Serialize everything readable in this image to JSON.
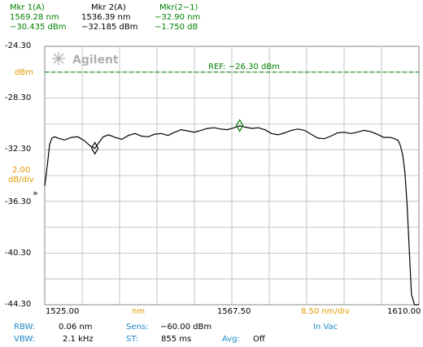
{
  "markers": [
    {
      "label": "Mkr 1(A)",
      "freq": "1569.28 nm",
      "level": "−30.435 dBm"
    },
    {
      "label": "Mkr 2(A)",
      "freq": "1536.39 nm",
      "level": "−32.185 dBm"
    },
    {
      "label": "Mkr(2−1)",
      "freq": "−32.90 nm",
      "level": "−1.750 dB"
    }
  ],
  "brand": "Agilent",
  "ref_label": "REF: −26.30 dBm",
  "y_unit": "dBm",
  "scale": {
    "value": "2.00",
    "unit": "dB/div"
  },
  "x_axis": {
    "start": "1525.00",
    "unit": "nm",
    "center": "1567.50",
    "span_per_div": "8.50 nm/div",
    "stop": "1610.00"
  },
  "settings": {
    "rbw_label": "RBW:",
    "rbw": "0.06 nm",
    "sens_label": "Sens:",
    "sens": "−60.00 dBm",
    "mode": "In Vac",
    "vbw_label": "VBW:",
    "vbw": "2.1 kHz",
    "st_label": "ST:",
    "st": "855 ms",
    "avg_label": "Avg:",
    "avg": "Off"
  },
  "colors": {
    "grid": "#b8b8b8",
    "trace": "#000000",
    "ref": "#008000",
    "marker": "#008000",
    "blue": "#1a88c9",
    "orange": "#e09a00"
  },
  "chart_data": {
    "type": "line",
    "xlim": [
      1525.0,
      1610.0
    ],
    "ylim": [
      -44.3,
      -24.3
    ],
    "y_ticks": [
      "-24.30",
      "-28.30",
      "-32.30",
      "-36.30",
      "-40.30",
      "-44.30"
    ],
    "ref_level": -26.3,
    "markers": [
      {
        "x": 1569.28,
        "y": -30.435
      },
      {
        "x": 1536.39,
        "y": -32.185
      }
    ],
    "series": [
      {
        "x": [
          1525.0,
          1525.6,
          1526.1,
          1526.6,
          1527.3,
          1528.0,
          1529.5,
          1531.0,
          1532.5,
          1534.0,
          1535.3,
          1536.4,
          1537.4,
          1538.3,
          1539.5,
          1541.0,
          1542.5,
          1544.0,
          1545.5,
          1547.0,
          1548.5,
          1550.0,
          1551.5,
          1553.0,
          1554.5,
          1556.0,
          1557.5,
          1559.0,
          1560.5,
          1562.0,
          1563.5,
          1565.0,
          1566.5,
          1568.0,
          1569.3,
          1570.5,
          1572.0,
          1573.5,
          1575.0,
          1576.5,
          1578.0,
          1579.5,
          1581.0,
          1582.5,
          1584.0,
          1585.5,
          1587.0,
          1588.5,
          1590.0,
          1591.5,
          1593.0,
          1594.5,
          1596.0,
          1597.5,
          1599.0,
          1600.5,
          1602.0,
          1603.5,
          1604.5,
          1605.3,
          1605.8,
          1606.3,
          1606.8,
          1607.3,
          1607.8,
          1608.3,
          1609.0,
          1610.0
        ],
        "y": [
          -35.1,
          -33.5,
          -31.9,
          -31.4,
          -31.3,
          -31.4,
          -31.55,
          -31.35,
          -31.3,
          -31.6,
          -32.0,
          -32.2,
          -31.7,
          -31.3,
          -31.15,
          -31.35,
          -31.5,
          -31.2,
          -31.05,
          -31.25,
          -31.3,
          -31.1,
          -31.05,
          -31.2,
          -30.95,
          -30.75,
          -30.85,
          -30.95,
          -30.8,
          -30.65,
          -30.6,
          -30.7,
          -30.75,
          -30.6,
          -30.45,
          -30.55,
          -30.65,
          -30.6,
          -30.75,
          -31.05,
          -31.15,
          -31.0,
          -30.8,
          -30.7,
          -30.8,
          -31.1,
          -31.4,
          -31.45,
          -31.25,
          -31.0,
          -30.95,
          -31.05,
          -30.95,
          -30.8,
          -30.9,
          -31.1,
          -31.35,
          -31.35,
          -31.45,
          -31.6,
          -32.0,
          -32.7,
          -34.0,
          -36.5,
          -40.0,
          -43.5,
          -44.3,
          -44.3
        ]
      }
    ]
  }
}
